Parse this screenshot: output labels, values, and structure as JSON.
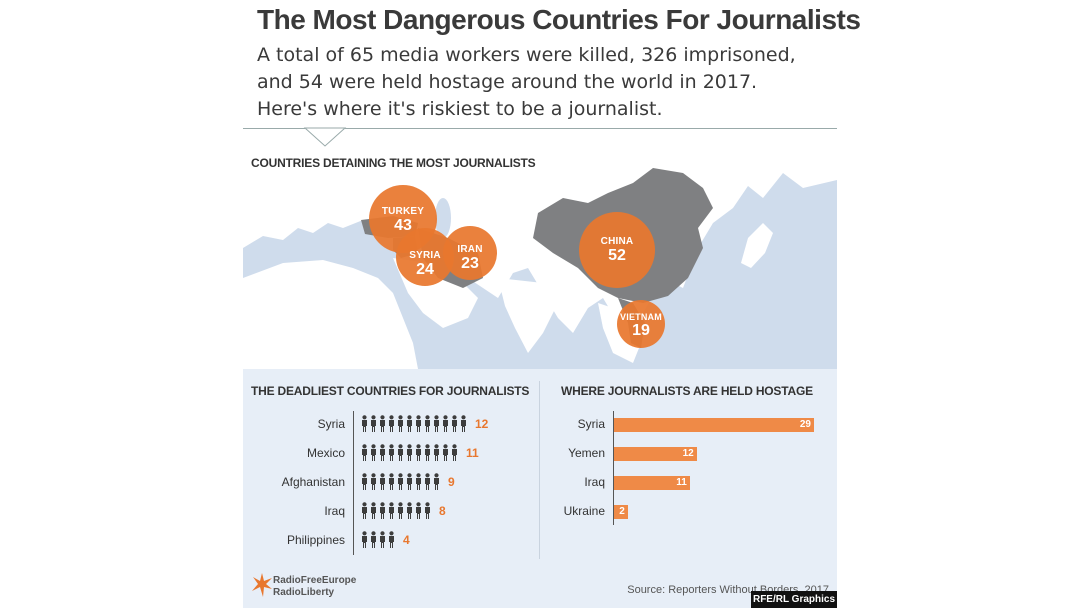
{
  "header": {
    "title": "The Most Dangerous Countries For Journalists",
    "subtitle_lines": [
      "A total of 65 media workers were killed, 326 imprisoned,",
      "and 54 were held hostage around the world in 2017.",
      "Here's where it's riskiest to be a journalist."
    ]
  },
  "colors": {
    "accent": "#e8772e",
    "bar": "#ef8a47",
    "highlighted_country": "#7f8082",
    "panel": "#e7eef7",
    "text": "#3a3a3a"
  },
  "chart_data": [
    {
      "type": "bubble-map",
      "title": "COUNTRIES DETAINING THE MOST JOURNALISTS",
      "points": [
        {
          "name": "TURKEY",
          "value": 43
        },
        {
          "name": "SYRIA",
          "value": 24
        },
        {
          "name": "IRAN",
          "value": 23
        },
        {
          "name": "CHINA",
          "value": 52
        },
        {
          "name": "VIETNAM",
          "value": 19
        }
      ]
    },
    {
      "type": "pictogram",
      "title": "THE DEADLIEST COUNTRIES FOR JOURNALISTS",
      "categories": [
        "Syria",
        "Mexico",
        "Afghanistan",
        "Iraq",
        "Philippines"
      ],
      "values": [
        12,
        11,
        9,
        8,
        4
      ]
    },
    {
      "type": "bar",
      "orientation": "horizontal",
      "title": "WHERE JOURNALISTS ARE HELD HOSTAGE",
      "categories": [
        "Syria",
        "Yemen",
        "Iraq",
        "Ukraine"
      ],
      "values": [
        29,
        12,
        11,
        2
      ]
    }
  ],
  "footer": {
    "logo_line1": "RadioFreeEurope",
    "logo_line2": "RadioLiberty",
    "source": "Source: Reporters Without Borders, 2017",
    "credit": "RFE/RL Graphics"
  }
}
